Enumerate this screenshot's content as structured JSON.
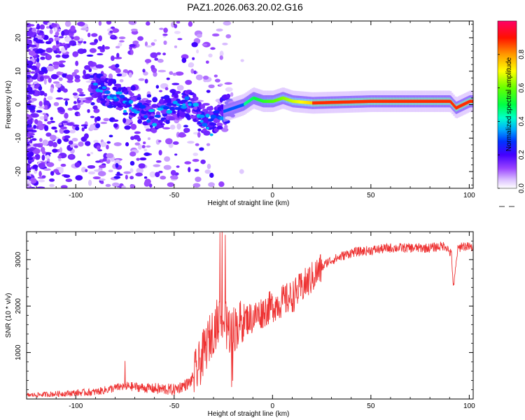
{
  "title": "PAZ1.2026.063.20.02.G16",
  "chart_data": [
    {
      "type": "heatmap",
      "xlabel": "Height of straight line (km)",
      "ylabel": "Frequency (Hz)",
      "xlim": [
        -125,
        102
      ],
      "ylim": [
        -25,
        25
      ],
      "xticks": [
        -100,
        -50,
        0,
        50,
        100
      ],
      "yticks": [
        -20,
        -10,
        0,
        10,
        20
      ],
      "xtick_labels": [
        "-100",
        "-50",
        "0",
        "50",
        "100"
      ],
      "ytick_labels": [
        "-20",
        "-10",
        "0",
        "10",
        "20"
      ],
      "colorbar": {
        "label": "Normalized spectral amplitude",
        "range": [
          0,
          1
        ],
        "ticks": [
          0.0,
          0.2,
          0.4,
          0.6,
          0.8
        ],
        "tick_labels": [
          "0.0",
          "0.2",
          "0.4",
          "0.6",
          "0.8"
        ],
        "colors": [
          "#ffffff",
          "#cc99ff",
          "#6600ff",
          "#0000ff",
          "#00ccff",
          "#00ff66",
          "#66ff00",
          "#ffff00",
          "#ff9900",
          "#ff0000",
          "#ff0066"
        ]
      },
      "ridge": {
        "description_points": [
          [
            -90,
            5
          ],
          [
            -80,
            3
          ],
          [
            -70,
            -1
          ],
          [
            -60,
            -4
          ],
          [
            -50,
            0
          ],
          [
            -40,
            0
          ],
          [
            -35,
            -5
          ],
          [
            -30,
            -5
          ],
          [
            -25,
            -2
          ],
          [
            -15,
            0
          ],
          [
            -10,
            2
          ],
          [
            -5,
            1
          ],
          [
            0,
            1
          ],
          [
            5,
            2
          ],
          [
            10,
            1
          ],
          [
            20,
            0.5
          ],
          [
            50,
            1
          ],
          [
            90,
            1
          ],
          [
            93,
            -1
          ],
          [
            100,
            1
          ]
        ]
      }
    },
    {
      "type": "line",
      "xlabel": "Height of straight line (km)",
      "ylabel": "SNR (10 * v/v)",
      "xlim": [
        -125,
        102
      ],
      "ylim": [
        0,
        3600
      ],
      "xticks": [
        -100,
        -50,
        0,
        50,
        100
      ],
      "yticks": [
        1000,
        2000,
        3000
      ],
      "xtick_labels": [
        "-100",
        "-50",
        "0",
        "50",
        "100"
      ],
      "ytick_labels": [
        "1000",
        "2000",
        "3000"
      ],
      "color": "#ee3333",
      "trend": {
        "x": [
          -125,
          -110,
          -90,
          -75,
          -60,
          -50,
          -42,
          -38,
          -34,
          -30,
          -27,
          -25,
          -22,
          -20,
          -15,
          -10,
          0,
          10,
          20,
          28,
          40,
          50,
          60,
          70,
          80,
          88,
          91,
          92,
          94,
          96,
          102
        ],
        "y": [
          80,
          110,
          150,
          280,
          220,
          200,
          350,
          650,
          1100,
          1500,
          1750,
          1700,
          1450,
          1500,
          1700,
          1750,
          2000,
          2200,
          2600,
          2950,
          3150,
          3200,
          3250,
          3250,
          3250,
          3300,
          3100,
          2350,
          3200,
          3300,
          3250
        ]
      }
    }
  ]
}
